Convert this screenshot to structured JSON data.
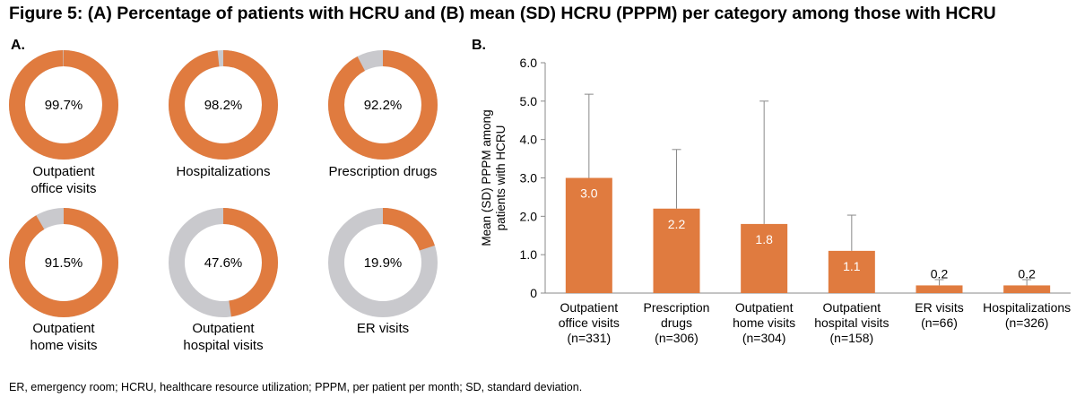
{
  "title": "Figure 5: (A) Percentage of patients with HCRU and (B) mean (SD) HCRU (PPPM) per category among those with HCRU",
  "panel_a_label": "A.",
  "panel_b_label": "B.",
  "footnote": "ER, emergency room; HCRU, healthcare resource utilization; PPPM, per patient per month; SD, standard deviation.",
  "colors": {
    "orange": "#e07b3f",
    "grey": "#c9c9cd",
    "axis": "#8a8a8a"
  },
  "chart_data": [
    {
      "type": "pie",
      "donuts": [
        {
          "value": 99.7,
          "label": "99.7%",
          "caption": "Outpatient\noffice visits"
        },
        {
          "value": 98.2,
          "label": "98.2%",
          "caption": "Hospitalizations"
        },
        {
          "value": 92.2,
          "label": "92.2%",
          "caption": "Prescription drugs"
        },
        {
          "value": 91.5,
          "label": "91.5%",
          "caption": "Outpatient\nhome visits"
        },
        {
          "value": 47.6,
          "label": "47.6%",
          "caption": "Outpatient\nhospital visits"
        },
        {
          "value": 19.9,
          "label": "19.9%",
          "caption": "ER visits"
        }
      ]
    },
    {
      "type": "bar",
      "ylabel_lines": [
        "Mean (SD) PPPM among",
        "patients with HCRU"
      ],
      "ylim": [
        0,
        6
      ],
      "yticks": [
        "0",
        "1.0",
        "2.0",
        "3.0",
        "4.0",
        "5.0",
        "6.0"
      ],
      "categories": [
        [
          "Outpatient",
          "office visits",
          "(n=331)"
        ],
        [
          "Prescription",
          "drugs",
          "(n=306)"
        ],
        [
          "Outpatient",
          "home visits",
          "(n=304)"
        ],
        [
          "Outpatient",
          "hospital visits",
          "(n=158)"
        ],
        [
          "ER visits",
          "(n=66)"
        ],
        [
          "Hospitalizations",
          "(n=326)"
        ]
      ],
      "values": [
        3.0,
        2.2,
        1.8,
        1.1,
        0.2,
        0.2
      ],
      "labels": [
        "3.0",
        "2.2",
        "1.8",
        "1.1",
        "0.2",
        "0.2"
      ],
      "sd": [
        2.18,
        1.54,
        3.2,
        0.93,
        0.15,
        0.15
      ],
      "grid": false
    }
  ]
}
